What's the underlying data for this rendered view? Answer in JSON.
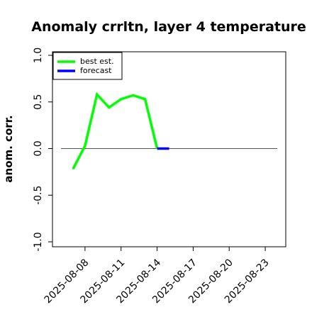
{
  "chart_data": {
    "type": "line",
    "title": "Anomaly crrltn, layer 4 temperature",
    "xlabel": "",
    "ylabel": "anom. corr.",
    "ylim": [
      -1.0,
      1.0
    ],
    "yticks": [
      -1.0,
      -0.5,
      0.0,
      0.5,
      1.0
    ],
    "ytick_labels": [
      "-1.0",
      "-0.5",
      "0.0",
      "0.5",
      "1.0"
    ],
    "xlim": [
      "2025-08-06",
      "2025-08-24"
    ],
    "xticks": [
      "2025-08-08",
      "2025-08-11",
      "2025-08-14",
      "2025-08-17",
      "2025-08-20",
      "2025-08-23"
    ],
    "highlight_tick": "2025-08-14",
    "highlight_color": "#228b22",
    "reference_line": 0.0,
    "legend_position": "top-left",
    "series": [
      {
        "name": "best est.",
        "color": "#00ff00",
        "x": [
          "2025-08-07",
          "2025-08-08",
          "2025-08-09",
          "2025-08-10",
          "2025-08-11",
          "2025-08-12",
          "2025-08-13",
          "2025-08-14"
        ],
        "values": [
          -0.22,
          0.03,
          0.58,
          0.44,
          0.53,
          0.57,
          0.53,
          0.0
        ]
      },
      {
        "name": "forecast",
        "color": "#0000ff",
        "x": [
          "2025-08-14",
          "2025-08-15"
        ],
        "values": [
          0.0,
          0.0
        ]
      }
    ]
  }
}
